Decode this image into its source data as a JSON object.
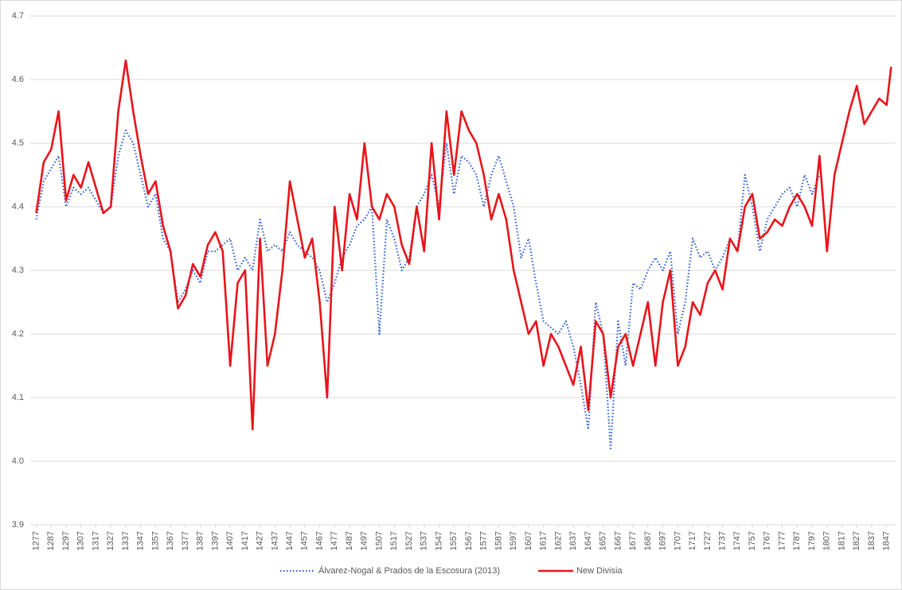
{
  "chart_data": {
    "type": "line",
    "x": [
      1277,
      1282,
      1287,
      1292,
      1297,
      1302,
      1307,
      1312,
      1317,
      1322,
      1327,
      1332,
      1337,
      1342,
      1347,
      1352,
      1357,
      1362,
      1367,
      1372,
      1377,
      1382,
      1387,
      1392,
      1397,
      1402,
      1407,
      1412,
      1417,
      1422,
      1427,
      1432,
      1437,
      1442,
      1447,
      1452,
      1457,
      1462,
      1467,
      1472,
      1477,
      1482,
      1487,
      1492,
      1497,
      1502,
      1507,
      1512,
      1517,
      1522,
      1527,
      1532,
      1537,
      1542,
      1547,
      1552,
      1557,
      1562,
      1567,
      1572,
      1577,
      1582,
      1587,
      1592,
      1597,
      1602,
      1607,
      1612,
      1617,
      1622,
      1627,
      1632,
      1637,
      1642,
      1647,
      1652,
      1657,
      1662,
      1667,
      1672,
      1677,
      1682,
      1687,
      1692,
      1697,
      1702,
      1707,
      1712,
      1717,
      1722,
      1727,
      1732,
      1737,
      1742,
      1747,
      1752,
      1757,
      1762,
      1767,
      1772,
      1777,
      1782,
      1787,
      1792,
      1797,
      1802,
      1807,
      1812,
      1817,
      1822,
      1827,
      1832,
      1837,
      1842,
      1847,
      1850
    ],
    "series": [
      {
        "name": "Álvarez-Nogal & Prados de la Escosura (2013)",
        "color": "#2e5fd8",
        "dash": "dotted",
        "values": [
          4.38,
          4.44,
          4.46,
          4.48,
          4.4,
          4.43,
          4.42,
          4.43,
          4.41,
          4.39,
          4.4,
          4.48,
          4.52,
          4.5,
          4.45,
          4.4,
          4.42,
          4.35,
          4.33,
          4.25,
          4.27,
          4.3,
          4.28,
          4.33,
          4.33,
          4.34,
          4.35,
          4.3,
          4.32,
          4.3,
          4.38,
          4.33,
          4.34,
          4.33,
          4.36,
          4.34,
          4.33,
          4.32,
          4.3,
          4.25,
          4.28,
          4.32,
          4.34,
          4.37,
          4.38,
          4.4,
          4.2,
          4.38,
          4.35,
          4.3,
          4.32,
          4.4,
          4.42,
          4.45,
          4.4,
          4.5,
          4.42,
          4.48,
          4.47,
          4.45,
          4.4,
          4.45,
          4.48,
          4.44,
          4.4,
          4.32,
          4.35,
          4.28,
          4.22,
          4.21,
          4.2,
          4.22,
          4.18,
          4.12,
          4.05,
          4.25,
          4.2,
          4.02,
          4.22,
          4.15,
          4.28,
          4.27,
          4.3,
          4.32,
          4.3,
          4.33,
          4.2,
          4.25,
          4.35,
          4.32,
          4.33,
          4.3,
          4.32,
          4.35,
          4.33,
          4.45,
          4.4,
          4.33,
          4.38,
          4.4,
          4.42,
          4.43,
          4.4,
          4.45,
          4.42,
          4.45,
          null,
          null,
          null,
          null,
          null,
          null,
          null,
          null,
          null,
          null
        ]
      },
      {
        "name": "New Divisia",
        "color": "#e8141b",
        "dash": "solid",
        "values": [
          4.39,
          4.47,
          4.49,
          4.55,
          4.41,
          4.45,
          4.43,
          4.47,
          4.43,
          4.39,
          4.4,
          4.55,
          4.63,
          4.55,
          4.48,
          4.42,
          4.44,
          4.37,
          4.33,
          4.24,
          4.26,
          4.31,
          4.29,
          4.34,
          4.36,
          4.33,
          4.15,
          4.28,
          4.3,
          4.05,
          4.35,
          4.15,
          4.2,
          4.3,
          4.44,
          4.38,
          4.32,
          4.35,
          4.25,
          4.1,
          4.4,
          4.3,
          4.42,
          4.38,
          4.5,
          4.4,
          4.38,
          4.42,
          4.4,
          4.34,
          4.31,
          4.4,
          4.33,
          4.5,
          4.38,
          4.55,
          4.45,
          4.55,
          4.52,
          4.5,
          4.45,
          4.38,
          4.42,
          4.38,
          4.3,
          4.25,
          4.2,
          4.22,
          4.15,
          4.2,
          4.18,
          4.15,
          4.12,
          4.18,
          4.08,
          4.22,
          4.2,
          4.1,
          4.18,
          4.2,
          4.15,
          4.2,
          4.25,
          4.15,
          4.25,
          4.3,
          4.15,
          4.18,
          4.25,
          4.23,
          4.28,
          4.3,
          4.27,
          4.35,
          4.33,
          4.4,
          4.42,
          4.35,
          4.36,
          4.38,
          4.37,
          4.4,
          4.42,
          4.4,
          4.37,
          4.48,
          4.33,
          4.45,
          4.5,
          4.55,
          4.59,
          4.53,
          4.55,
          4.57,
          4.56,
          4.62
        ]
      }
    ],
    "xlim": [
      1273,
      1853
    ],
    "xticks": [
      1277,
      1287,
      1297,
      1307,
      1317,
      1327,
      1337,
      1347,
      1357,
      1367,
      1377,
      1387,
      1397,
      1407,
      1417,
      1427,
      1437,
      1447,
      1457,
      1467,
      1477,
      1487,
      1497,
      1507,
      1517,
      1527,
      1537,
      1547,
      1557,
      1567,
      1577,
      1587,
      1597,
      1607,
      1617,
      1627,
      1637,
      1647,
      1657,
      1667,
      1677,
      1687,
      1697,
      1707,
      1717,
      1727,
      1737,
      1747,
      1757,
      1767,
      1777,
      1787,
      1797,
      1807,
      1817,
      1827,
      1837,
      1847
    ],
    "ylim": [
      3.9,
      4.7
    ],
    "yticks": [
      3.9,
      {
        "value": 4,
        "label": "4.0"
      },
      4.1,
      4.2,
      4.3,
      4.4,
      4.5,
      4.6,
      4.7
    ],
    "grid": true,
    "legend": "bottom"
  }
}
